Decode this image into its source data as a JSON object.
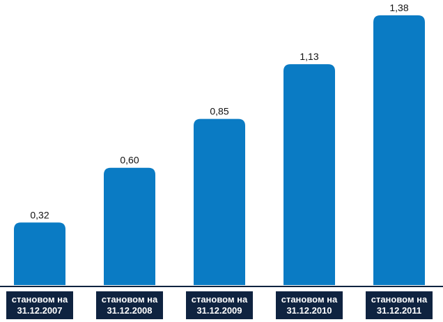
{
  "chart_data": {
    "type": "bar",
    "categories": [
      [
        "становом на",
        "31.12.2007"
      ],
      [
        "становом на",
        "31.12.2008"
      ],
      [
        "становом на",
        "31.12.2009"
      ],
      [
        "становом на",
        "31.12.2010"
      ],
      [
        "становом на",
        "31.12.2011"
      ]
    ],
    "values": [
      0.32,
      0.6,
      0.85,
      1.13,
      1.38
    ],
    "value_labels": [
      "0,32",
      "0,60",
      "0,85",
      "1,13",
      "1,38"
    ],
    "title": "",
    "xlabel": "",
    "ylabel": "",
    "ylim": [
      0,
      1.38
    ],
    "grid": false,
    "legend": "none",
    "colors": {
      "bar": "#0a7bc4",
      "label_box": "#0f2340",
      "baseline": "#0f2340"
    }
  }
}
